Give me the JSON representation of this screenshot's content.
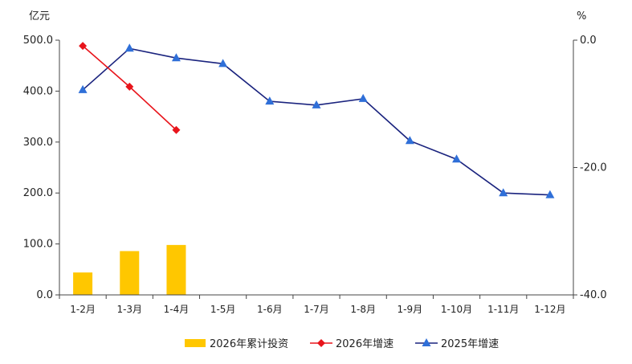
{
  "chart_data": {
    "type": "bar",
    "categories": [
      "1-2月",
      "1-3月",
      "1-4月",
      "1-5月",
      "1-6月",
      "1-7月",
      "1-8月",
      "1-9月",
      "1-10月",
      "1-11月",
      "1-12月"
    ],
    "y_left": {
      "unit": "亿元",
      "range": [
        0,
        500
      ],
      "ticks": [
        "0.0",
        "100.0",
        "200.0",
        "300.0",
        "400.0",
        "500.0"
      ]
    },
    "y_right": {
      "unit": "%",
      "range": [
        -40,
        0
      ],
      "ticks": [
        "0.0",
        "-20.0",
        "-40.0"
      ]
    },
    "series": [
      {
        "name": "2026年累计投资",
        "type": "bar",
        "axis": "left",
        "color": "#FFC700",
        "values": [
          44,
          86,
          98,
          null,
          null,
          null,
          null,
          null,
          null,
          null,
          null
        ]
      },
      {
        "name": "2026年增速",
        "type": "line",
        "axis": "right",
        "color": "#E8141B",
        "marker": "diamond",
        "values": [
          -0.9,
          -7.3,
          -14.1,
          null,
          null,
          null,
          null,
          null,
          null,
          null,
          null
        ]
      },
      {
        "name": "2025年增速",
        "type": "line",
        "axis": "right",
        "color": "#1A237E",
        "marker": "triangle",
        "marker_color": "#2F6FD8",
        "values": [
          -7.8,
          -1.3,
          -2.8,
          -3.7,
          -9.6,
          -10.2,
          -9.2,
          -15.8,
          -18.7,
          -24.0,
          -24.3
        ]
      }
    ],
    "grid": false,
    "legend_position": "bottom"
  }
}
